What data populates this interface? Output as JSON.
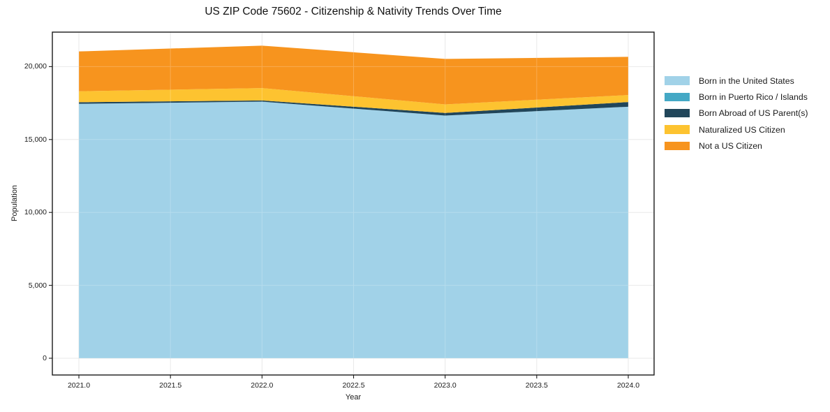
{
  "title": "US ZIP Code 75602 - Citizenship & Nativity Trends Over Time",
  "axes": {
    "x_label": "Year",
    "y_label": "Population",
    "x_ticks": [
      "2021.0",
      "2021.5",
      "2022.0",
      "2022.5",
      "2023.0",
      "2023.5",
      "2024.0"
    ],
    "y_ticks": [
      "0",
      "5,000",
      "10,000",
      "15,000",
      "20,000"
    ]
  },
  "legend": {
    "entries": [
      {
        "label": "Born in the United States",
        "color": "#A1D2E8"
      },
      {
        "label": "Born in Puerto Rico / Islands",
        "color": "#44A8C5"
      },
      {
        "label": "Born Abroad of US Parent(s)",
        "color": "#21465A"
      },
      {
        "label": "Naturalized US Citizen",
        "color": "#FDC330"
      },
      {
        "label": "Not a US Citizen",
        "color": "#F7941E"
      }
    ]
  },
  "chart_data": {
    "type": "area",
    "stacked": true,
    "title": "US ZIP Code 75602 - Citizenship & Nativity Trends Over Time",
    "xlabel": "Year",
    "ylabel": "Population",
    "x": [
      2021,
      2022,
      2023,
      2024
    ],
    "series": [
      {
        "name": "Born in the United States",
        "color": "#A1D2E8",
        "values": [
          17450,
          17600,
          16640,
          17250
        ]
      },
      {
        "name": "Born in Puerto Rico / Islands",
        "color": "#44A8C5",
        "values": [
          0,
          0,
          0,
          0
        ]
      },
      {
        "name": "Born Abroad of US Parent(s)",
        "color": "#21465A",
        "values": [
          110,
          80,
          180,
          320
        ]
      },
      {
        "name": "Naturalized US Citizen",
        "color": "#FDC330",
        "values": [
          750,
          850,
          590,
          480
        ]
      },
      {
        "name": "Not a US Citizen",
        "color": "#F7941E",
        "values": [
          2730,
          2910,
          3120,
          2620
        ]
      }
    ],
    "stacked_totals": [
      21040,
      21440,
      20530,
      20670
    ],
    "xlim": [
      2020.8551,
      2024.141
    ],
    "ylim": [
      -1149,
      22366
    ],
    "x_tick_values": [
      2021.0,
      2021.5,
      2022.0,
      2022.5,
      2023.0,
      2023.5,
      2024.0
    ],
    "y_tick_values": [
      0,
      5000,
      10000,
      15000,
      20000
    ],
    "grid": true,
    "legend_position": "right-outside"
  },
  "style": {
    "grid_color": "#e3e3e3",
    "spine_color": "#1a1a1a",
    "background": "#ffffff"
  }
}
